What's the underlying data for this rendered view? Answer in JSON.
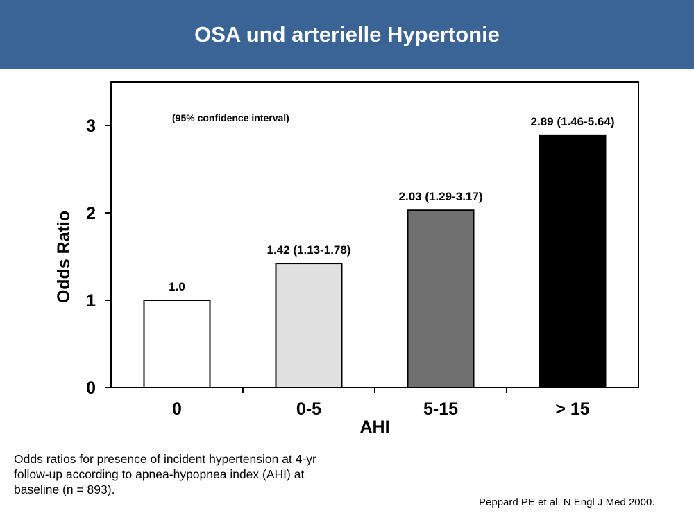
{
  "header": {
    "title": "OSA und arterielle Hypertonie"
  },
  "chart_data": {
    "type": "bar",
    "categories": [
      "0",
      "0-5",
      "5-15",
      "> 15"
    ],
    "values": [
      1.0,
      1.42,
      2.03,
      2.89
    ],
    "data_labels": [
      "1.0",
      "1.42 (1.13-1.78)",
      "2.03 (1.29-3.17)",
      "2.89 (1.46-5.64)"
    ],
    "bar_colors": [
      "#ffffff",
      "#e0e0e0",
      "#707070",
      "#000000"
    ],
    "annotation": "(95% confidence interval)",
    "xlabel": "AHI",
    "ylabel": "Odds Ratio",
    "ylim": [
      0,
      3.5
    ],
    "yticks": [
      0,
      1,
      2,
      3
    ],
    "grid": false,
    "legend": "none"
  },
  "caption": "Odds ratios for presence of incident hypertension at 4-yr follow-up according to apnea-hypopnea index (AHI) at baseline (n = 893).",
  "source": "Peppard PE et al. N Engl J Med 2000."
}
